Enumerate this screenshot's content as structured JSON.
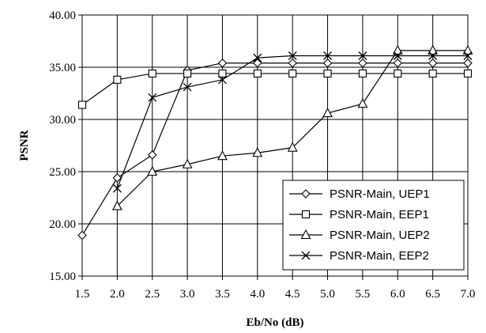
{
  "chart_data": {
    "type": "line",
    "title": "",
    "xlabel": "Eb/No (dB)",
    "ylabel": "PSNR",
    "x": [
      1.5,
      2.0,
      2.5,
      3.0,
      3.5,
      4.0,
      4.5,
      5.0,
      5.5,
      6.0,
      6.5,
      7.0
    ],
    "x_tick_labels": [
      "1.5",
      "2.0",
      "2.5",
      "3.0",
      "3.5",
      "4.0",
      "4.5",
      "5.0",
      "5.5",
      "6.0",
      "6.5",
      "7.0"
    ],
    "y_tick_labels": [
      "15.00",
      "20.00",
      "25.00",
      "30.00",
      "35.00",
      "40.00"
    ],
    "xlim": [
      1.5,
      7.0
    ],
    "ylim": [
      15,
      40
    ],
    "grid": true,
    "legend_position": "lower-right",
    "series": [
      {
        "name": "PSNR-Main, UEP1",
        "marker": "diamond",
        "values": [
          18.9,
          24.4,
          26.6,
          34.7,
          35.4,
          35.4,
          35.4,
          35.4,
          35.4,
          35.4,
          35.4,
          35.4
        ]
      },
      {
        "name": "PSNR-Main, EEP1",
        "marker": "square",
        "values": [
          31.4,
          33.8,
          34.4,
          34.4,
          34.4,
          34.4,
          34.4,
          34.4,
          34.4,
          34.4,
          34.4,
          34.4
        ]
      },
      {
        "name": "PSNR-Main, UEP2",
        "marker": "triangle",
        "values": [
          null,
          21.7,
          25.0,
          25.7,
          26.5,
          26.8,
          27.3,
          30.6,
          31.5,
          36.6,
          36.6,
          36.6
        ]
      },
      {
        "name": "PSNR-Main, EEP2",
        "marker": "x",
        "values": [
          null,
          23.4,
          32.1,
          33.1,
          33.8,
          35.9,
          36.1,
          36.1,
          36.1,
          36.1,
          36.1,
          36.1
        ]
      }
    ]
  }
}
